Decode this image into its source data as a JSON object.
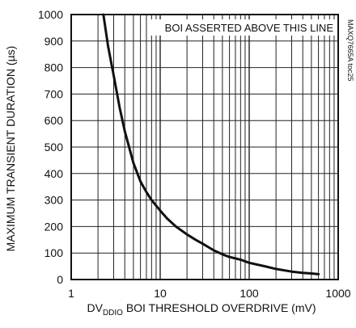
{
  "chart_data": {
    "type": "line",
    "xscale": "log",
    "xlim": [
      1,
      1000
    ],
    "ylim": [
      0,
      1000
    ],
    "xticks": [
      1,
      10,
      100,
      1000
    ],
    "xtick_labels": [
      "1",
      "10",
      "100",
      "1000"
    ],
    "yticks": [
      0,
      100,
      200,
      300,
      400,
      500,
      600,
      700,
      800,
      900,
      1000
    ],
    "ytick_labels": [
      "0",
      "100",
      "200",
      "300",
      "400",
      "500",
      "600",
      "700",
      "800",
      "900",
      "1000"
    ],
    "grid": true,
    "ylabel": "MAXIMUM TRANSIENT DURATION (µs)",
    "xlabel": {
      "prefix": "DV",
      "subscript": "DDIO",
      "suffix": " BOI THRESHOLD OVERDRIVE (mV)"
    },
    "annotation": "BOI ASSERTED ABOVE THIS LINE",
    "figure_code": "MAXQ7665A toc25",
    "series": [
      {
        "color": "#111111",
        "x": [
          2.3,
          2.6,
          3.0,
          3.5,
          4.0,
          5.0,
          6.0,
          7.0,
          8.0,
          10,
          12,
          15,
          20,
          25,
          30,
          40,
          50,
          60,
          80,
          100,
          150,
          200,
          300,
          400,
          500,
          600
        ],
        "y": [
          1000,
          880,
          770,
          650,
          560,
          440,
          370,
          330,
          300,
          260,
          230,
          200,
          170,
          150,
          135,
          110,
          95,
          85,
          75,
          63,
          50,
          40,
          30,
          25,
          23,
          20
        ]
      }
    ]
  }
}
